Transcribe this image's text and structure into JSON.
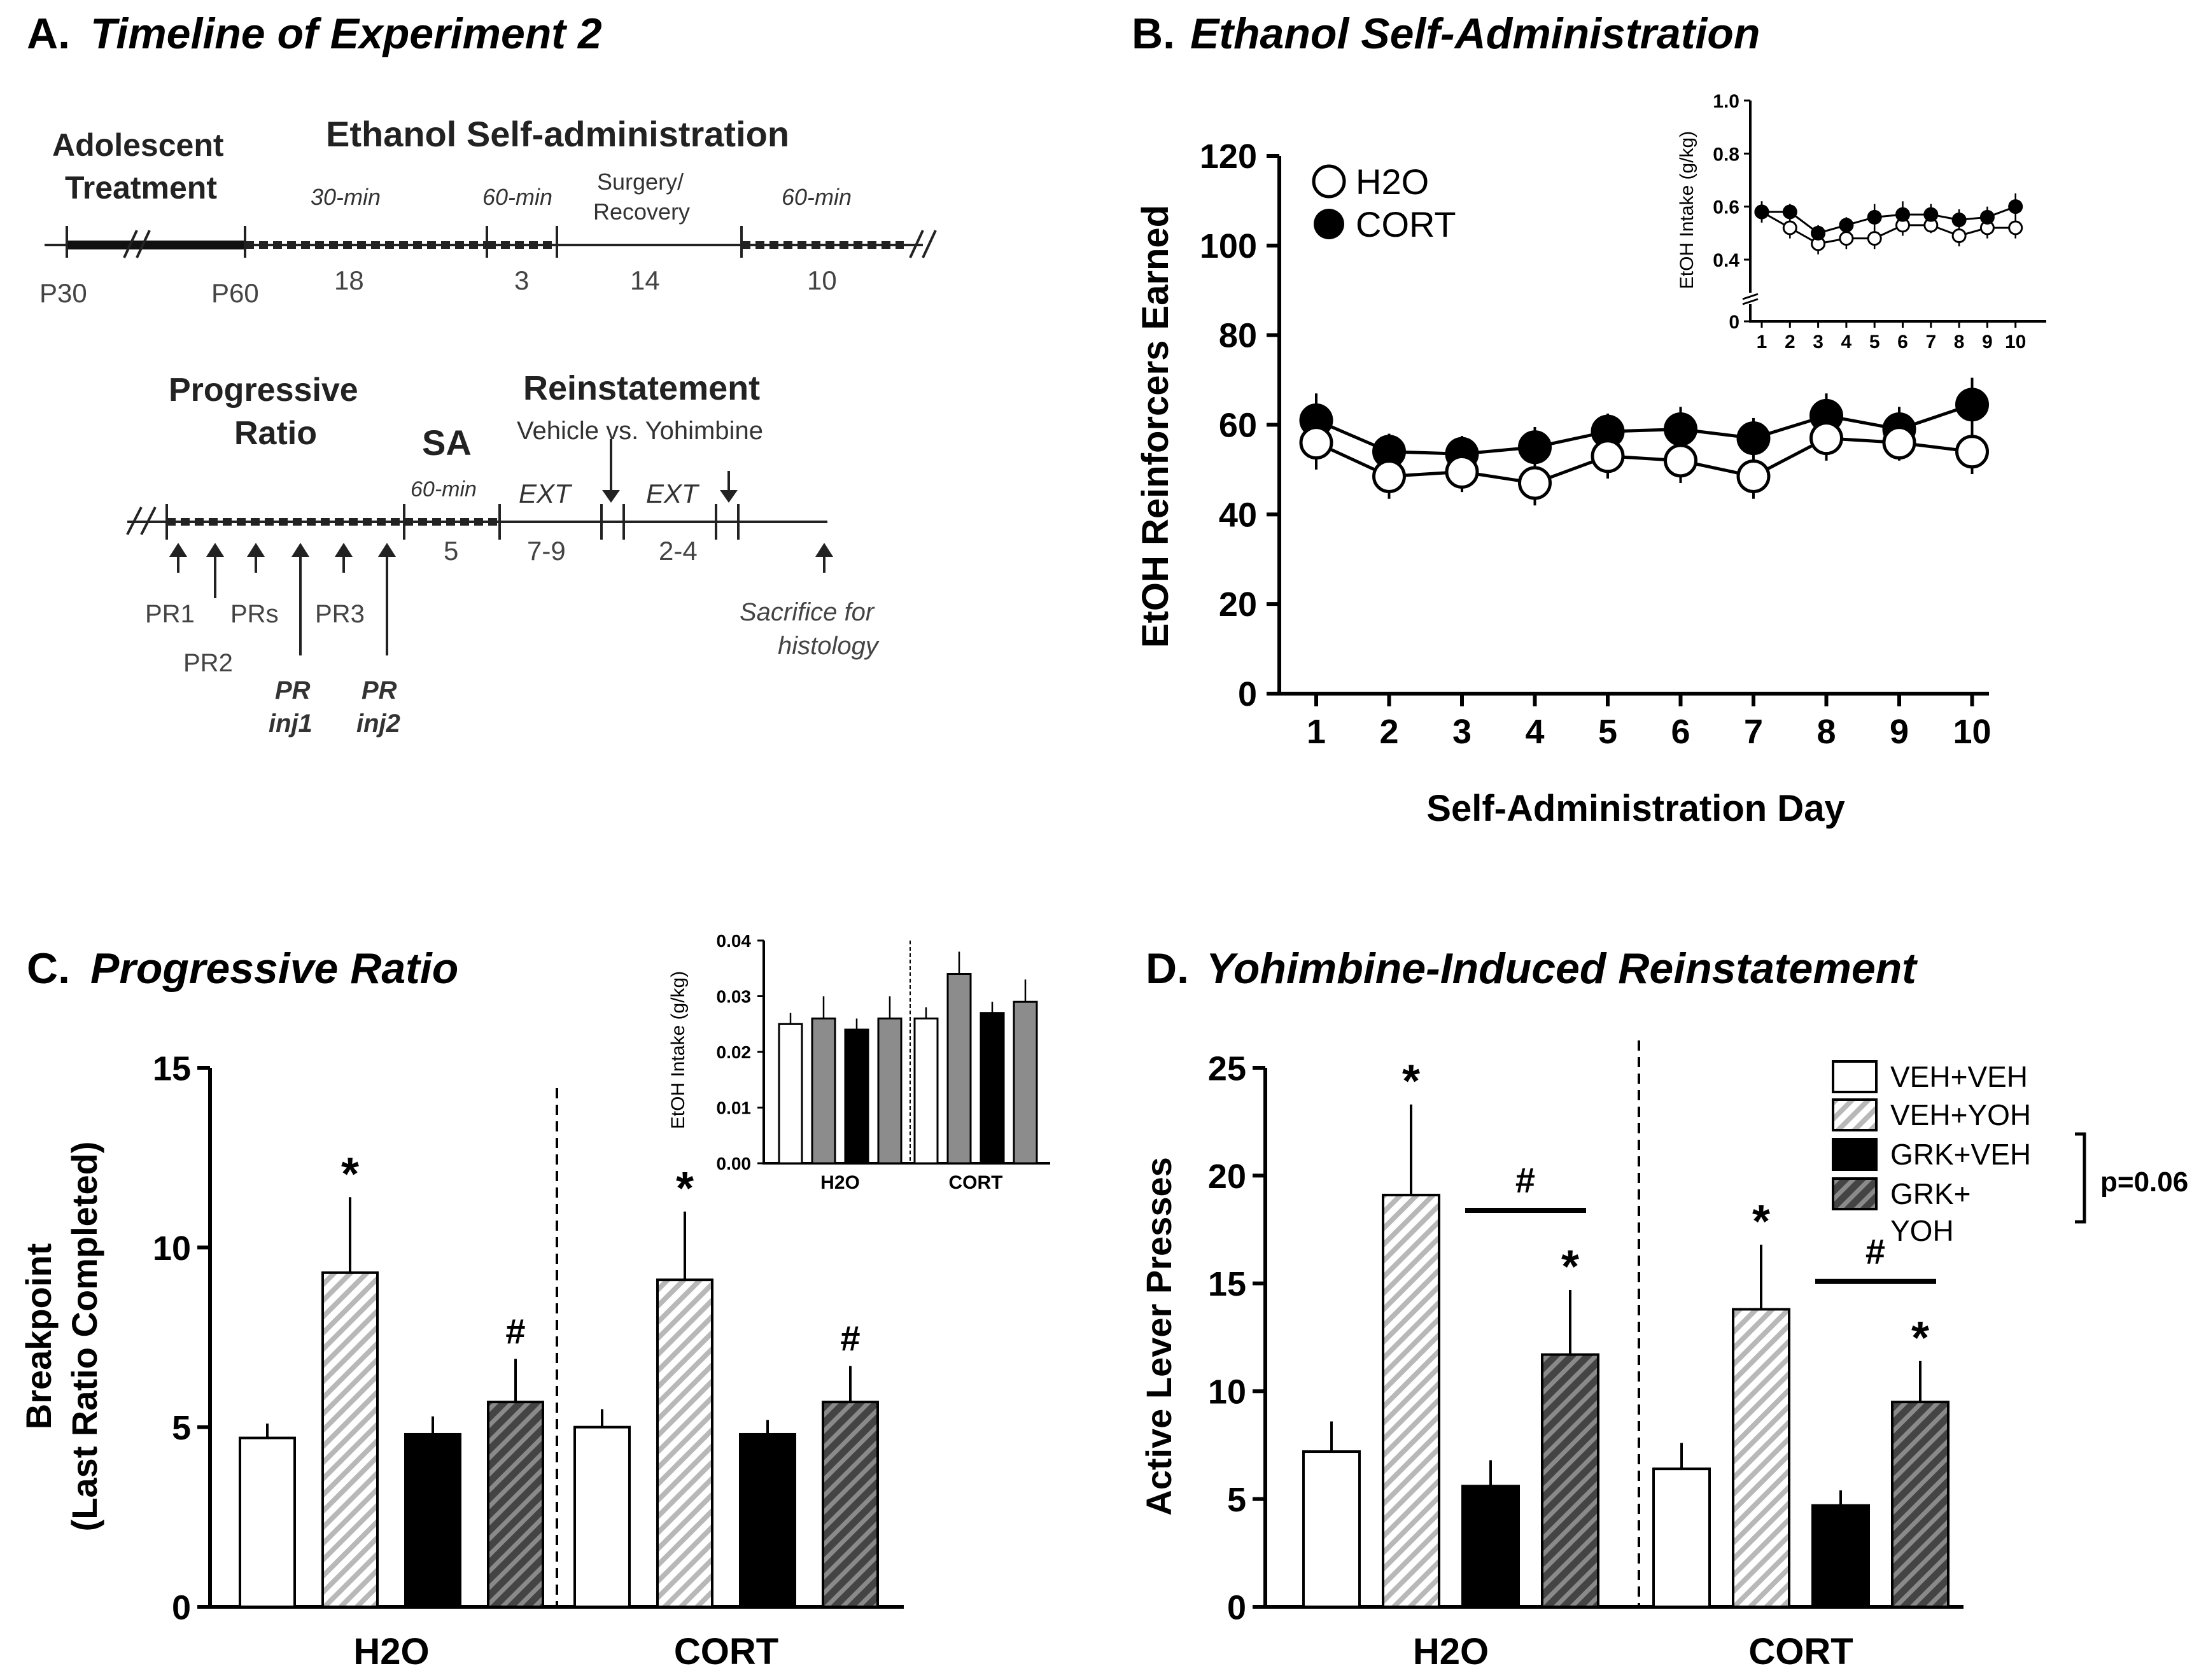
{
  "panels": {
    "a": {
      "letter": "A.",
      "title": "Timeline of Experiment 2"
    },
    "b": {
      "letter": "B.",
      "title": "Ethanol Self-Administration"
    },
    "c": {
      "letter": "C.",
      "title": "Progressive Ratio"
    },
    "d": {
      "letter": "D.",
      "title": "Yohimbine-Induced Reinstatement"
    }
  },
  "timeline": {
    "top": {
      "adolescent_line1": "Adolescent",
      "adolescent_line2": "Treatment",
      "etoh_sa": "Ethanol Self-administration",
      "seg_30min": "30-min",
      "seg_60min_a": "60-min",
      "surgery_line1": "Surgery/",
      "surgery_line2": "Recovery",
      "seg_60min_b": "60-min",
      "p30": "P30",
      "p60": "P60",
      "n18": "18",
      "n3": "3",
      "n14": "14",
      "n10": "10"
    },
    "bottom": {
      "pr_line1": "Progressive",
      "pr_line2": "Ratio",
      "sa": "SA",
      "sa_dur": "60-min",
      "reinstatement": "Reinstatement",
      "veh_yoh": "Vehicle vs. Yohimbine",
      "ext1": "EXT",
      "ext2": "EXT",
      "n5": "5",
      "n79": "7-9",
      "n24": "2-4",
      "pr1": "PR1",
      "pr2": "PR2",
      "prs": "PRs",
      "pr3": "PR3",
      "prinj1_line1": "PR",
      "prinj1_line2": "inj1",
      "prinj2_line1": "PR",
      "prinj2_line2": "inj2",
      "sacrifice_line1": "Sacrifice for",
      "sacrifice_line2": "histology"
    }
  },
  "chart_data": [
    {
      "id": "B-main",
      "type": "line",
      "xlabel": "Self-Administration Day",
      "ylabel": "EtOH Reinforcers Earned",
      "x": [
        1,
        2,
        3,
        4,
        5,
        6,
        7,
        8,
        9,
        10
      ],
      "xticks": [
        "1",
        "2",
        "3",
        "4",
        "5",
        "6",
        "7",
        "8",
        "9",
        "10"
      ],
      "ylim": [
        0,
        120
      ],
      "yticks": [
        "0",
        "20",
        "40",
        "60",
        "80",
        "100",
        "120"
      ],
      "series": [
        {
          "name": "H2O",
          "marker": "open",
          "values": [
            56,
            48.5,
            49.5,
            47,
            53,
            52,
            48.5,
            57,
            56,
            54
          ],
          "errors": [
            6,
            5,
            4.5,
            5,
            5,
            5,
            5,
            5,
            4,
            5
          ]
        },
        {
          "name": "CORT",
          "marker": "filled",
          "values": [
            61,
            54,
            53.5,
            55,
            58.5,
            59,
            57,
            62,
            59,
            64.5
          ],
          "errors": [
            6,
            4,
            4,
            4.5,
            4,
            5,
            4.5,
            5,
            5,
            6
          ]
        }
      ],
      "legend": [
        "H2O",
        "CORT"
      ]
    },
    {
      "id": "B-inset",
      "type": "line",
      "xlabel": "",
      "ylabel": "EtOH Intake (g/kg)",
      "x": [
        1,
        2,
        3,
        4,
        5,
        6,
        7,
        8,
        9,
        10
      ],
      "xticks": [
        "1",
        "2",
        "3",
        "4",
        "5",
        "6",
        "7",
        "8",
        "9",
        "10"
      ],
      "ylim": [
        0,
        1.0
      ],
      "yticks": [
        "0",
        "0.4",
        "0.6",
        "0.8",
        "1.0"
      ],
      "series": [
        {
          "name": "H2O",
          "marker": "open",
          "values": [
            0.58,
            0.52,
            0.46,
            0.48,
            0.48,
            0.53,
            0.53,
            0.49,
            0.52,
            0.52
          ],
          "errors": [
            0.04,
            0.04,
            0.04,
            0.04,
            0.04,
            0.04,
            0.03,
            0.04,
            0.04,
            0.04
          ]
        },
        {
          "name": "CORT",
          "marker": "filled",
          "values": [
            0.58,
            0.58,
            0.5,
            0.53,
            0.56,
            0.57,
            0.57,
            0.55,
            0.56,
            0.6
          ],
          "errors": [
            0.04,
            0.03,
            0.03,
            0.03,
            0.05,
            0.05,
            0.04,
            0.04,
            0.04,
            0.05
          ]
        }
      ]
    },
    {
      "id": "C-main",
      "type": "bar",
      "ylabel_line1": "Breakpoint",
      "ylabel_line2": "(Last Ratio Completed)",
      "categories": [
        "H2O",
        "CORT"
      ],
      "ylim": [
        0,
        15
      ],
      "yticks": [
        "0",
        "5",
        "10",
        "15"
      ],
      "series": [
        {
          "name": "VEH+VEH",
          "style": "open",
          "values": [
            4.7,
            5.0
          ],
          "errors": [
            0.4,
            0.5
          ]
        },
        {
          "name": "VEH+YOH",
          "style": "hatched-light",
          "values": [
            9.3,
            9.1
          ],
          "errors": [
            2.1,
            1.9
          ]
        },
        {
          "name": "GRK+VEH",
          "style": "solid-black",
          "values": [
            4.8,
            4.8
          ],
          "errors": [
            0.5,
            0.4
          ]
        },
        {
          "name": "GRK+YOH",
          "style": "hatched-dark",
          "values": [
            5.7,
            5.7
          ],
          "errors": [
            1.2,
            1.0
          ]
        }
      ],
      "annotations": [
        {
          "text": "*",
          "group": 0,
          "bar": 1
        },
        {
          "text": "#",
          "group": 0,
          "bar": 3
        },
        {
          "text": "*",
          "group": 1,
          "bar": 1
        },
        {
          "text": "#",
          "group": 1,
          "bar": 3
        }
      ]
    },
    {
      "id": "C-inset",
      "type": "bar",
      "ylabel": "EtOH Intake (g/kg)",
      "categories": [
        "H2O",
        "CORT"
      ],
      "ylim": [
        0,
        0.04
      ],
      "yticks": [
        "0.00",
        "0.01",
        "0.02",
        "0.03",
        "0.04"
      ],
      "series": [
        {
          "name": "VEH+VEH",
          "style": "open",
          "values": [
            0.025,
            0.026
          ],
          "errors": [
            0.002,
            0.002
          ]
        },
        {
          "name": "VEH+YOH",
          "style": "gray",
          "values": [
            0.026,
            0.034
          ],
          "errors": [
            0.004,
            0.004
          ]
        },
        {
          "name": "GRK+VEH",
          "style": "solid-black",
          "values": [
            0.024,
            0.027
          ],
          "errors": [
            0.002,
            0.002
          ]
        },
        {
          "name": "GRK+YOH",
          "style": "gray",
          "values": [
            0.026,
            0.029
          ],
          "errors": [
            0.004,
            0.004
          ]
        }
      ]
    },
    {
      "id": "D-main",
      "type": "bar",
      "ylabel": "Active Lever Presses",
      "categories": [
        "H2O",
        "CORT"
      ],
      "ylim": [
        0,
        25
      ],
      "yticks": [
        "0",
        "5",
        "10",
        "15",
        "20",
        "25"
      ],
      "series": [
        {
          "name": "VEH+VEH",
          "style": "open",
          "values": [
            7.2,
            6.4
          ],
          "errors": [
            1.4,
            1.2
          ]
        },
        {
          "name": "VEH+YOH",
          "style": "hatched-light",
          "values": [
            19.1,
            13.8
          ],
          "errors": [
            4.2,
            3.0
          ]
        },
        {
          "name": "GRK+VEH",
          "style": "solid-black",
          "values": [
            5.6,
            4.7
          ],
          "errors": [
            1.2,
            0.7
          ]
        },
        {
          "name": "GRK+YOH",
          "style": "hatched-dark",
          "values": [
            11.7,
            9.5
          ],
          "errors": [
            3.0,
            1.9
          ]
        }
      ],
      "legend": [
        "VEH+VEH",
        "VEH+YOH",
        "GRK+VEH",
        "GRK+",
        "YOH"
      ],
      "bracket_label": "p=0.06",
      "annotations": [
        {
          "text": "*",
          "group": 0,
          "bar": 1
        },
        {
          "text": "*",
          "group": 0,
          "bar": 3
        },
        {
          "text": "#",
          "group": 0,
          "bar": "2-3"
        },
        {
          "text": "*",
          "group": 1,
          "bar": 1
        },
        {
          "text": "*",
          "group": 1,
          "bar": 3
        },
        {
          "text": "#",
          "group": 1,
          "bar": "2-3"
        }
      ]
    }
  ]
}
